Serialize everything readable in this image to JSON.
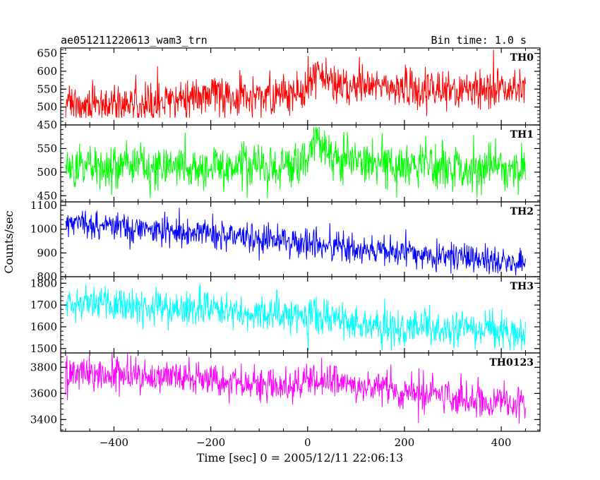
{
  "header": {
    "title": "ae051211220613_wam3_trn",
    "bin_time": "Bin time: 1.0 s"
  },
  "chart_data": {
    "type": "line",
    "title": "ae051211220613_wam3_trn",
    "xlabel": "Time [sec] 0 = 2005/12/11 22:06:13",
    "ylabel": "Counts/sec",
    "xlim": [
      -510,
      480
    ],
    "x_range": [
      -500,
      450
    ],
    "x_ticks": [
      -400,
      -200,
      0,
      200,
      400
    ],
    "x_tick_labels": [
      "−400",
      "−200",
      "0",
      "200",
      "400"
    ],
    "grid": false,
    "panels": [
      {
        "name": "TH0",
        "color": "#ff0000",
        "ylim": [
          450,
          665
        ],
        "y_ticks": [
          450,
          500,
          550,
          600,
          650
        ],
        "y_tick_labels": [
          "450",
          "500",
          "550",
          "600",
          "650"
        ],
        "trend": [
          [
            -500,
            505
          ],
          [
            -300,
            520
          ],
          [
            -100,
            535
          ],
          [
            -10,
            535
          ],
          [
            0,
            565
          ],
          [
            20,
            600
          ],
          [
            60,
            560
          ],
          [
            200,
            550
          ],
          [
            450,
            555
          ]
        ],
        "noise_sd": 28,
        "y_min": 470,
        "y_max": 660
      },
      {
        "name": "TH1",
        "color": "#00ff00",
        "ylim": [
          437,
          600
        ],
        "y_ticks": [
          450,
          500,
          550
        ],
        "y_tick_labels": [
          "450",
          "500",
          "550"
        ],
        "trend": [
          [
            -500,
            510
          ],
          [
            -100,
            513
          ],
          [
            -20,
            515
          ],
          [
            0,
            540
          ],
          [
            20,
            570
          ],
          [
            60,
            530
          ],
          [
            200,
            512
          ],
          [
            450,
            510
          ]
        ],
        "noise_sd": 24,
        "y_min": 445,
        "y_max": 596
      },
      {
        "name": "TH2",
        "color": "#0000ff",
        "ylim": [
          800,
          1115
        ],
        "y_ticks": [
          800,
          900,
          1000,
          1100
        ],
        "y_tick_labels": [
          "800",
          "900",
          "1000",
          "1100"
        ],
        "trend": [
          [
            -500,
            1025
          ],
          [
            -300,
            995
          ],
          [
            -100,
            965
          ],
          [
            0,
            945
          ],
          [
            100,
            915
          ],
          [
            300,
            880
          ],
          [
            450,
            850
          ]
        ],
        "noise_sd": 30,
        "y_min": 805,
        "y_max": 1112
      },
      {
        "name": "TH3",
        "color": "#00ffff",
        "ylim": [
          1480,
          1830
        ],
        "y_ticks": [
          1500,
          1600,
          1700,
          1800
        ],
        "y_tick_labels": [
          "1500",
          "1600",
          "1700",
          "1800"
        ],
        "trend": [
          [
            -500,
            1710
          ],
          [
            -200,
            1680
          ],
          [
            0,
            1660
          ],
          [
            80,
            1630
          ],
          [
            100,
            1595
          ],
          [
            300,
            1600
          ],
          [
            450,
            1570
          ]
        ],
        "noise_sd": 45,
        "y_min": 1490,
        "y_max": 1820
      },
      {
        "name": "TH0123",
        "color": "#ff00ff",
        "ylim": [
          3310,
          3910
        ],
        "y_ticks": [
          3400,
          3600,
          3800
        ],
        "y_tick_labels": [
          "3400",
          "3600",
          "3800"
        ],
        "trend": [
          [
            -500,
            3760
          ],
          [
            -200,
            3710
          ],
          [
            -10,
            3650
          ],
          [
            0,
            3720
          ],
          [
            50,
            3690
          ],
          [
            200,
            3620
          ],
          [
            450,
            3510
          ]
        ],
        "noise_sd": 65,
        "y_min": 3330,
        "y_max": 3905
      }
    ]
  }
}
